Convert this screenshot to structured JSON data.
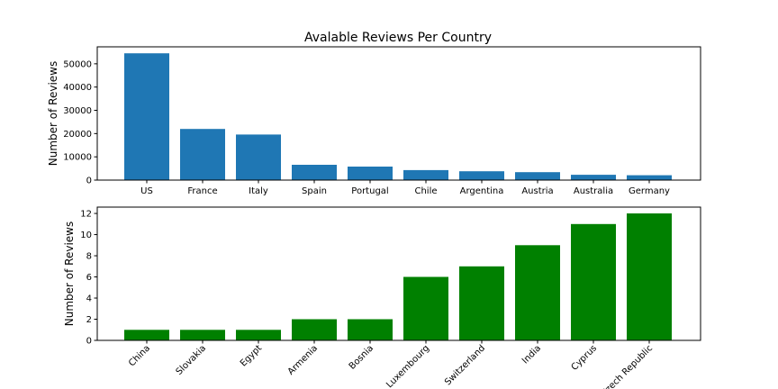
{
  "chart_data": [
    {
      "type": "bar",
      "title": "Avalable Reviews Per Country",
      "xlabel": "",
      "ylabel": "Number of Reviews",
      "categories": [
        "US",
        "France",
        "Italy",
        "Spain",
        "Portugal",
        "Chile",
        "Argentina",
        "Austria",
        "Australia",
        "Germany"
      ],
      "values": [
        54500,
        22000,
        19600,
        6600,
        5800,
        4300,
        3800,
        3400,
        2300,
        2100
      ],
      "ylim": [
        0,
        57300
      ],
      "yticks": [
        0,
        10000,
        20000,
        30000,
        40000,
        50000
      ],
      "bar_color": "#1f77b4",
      "grid": false,
      "rotate_xticks": 0
    },
    {
      "type": "bar",
      "title": "",
      "xlabel": "",
      "ylabel": "Number of Reviews",
      "categories": [
        "China",
        "Slovakia",
        "Egypt",
        "Armenia",
        "Bosnia",
        "Luxembourg",
        "Switzerland",
        "India",
        "Cyprus",
        "Czech Republic"
      ],
      "values": [
        1,
        1,
        1,
        2,
        2,
        6,
        7,
        9,
        11,
        12
      ],
      "ylim": [
        0,
        12.6
      ],
      "yticks": [
        0,
        2,
        4,
        6,
        8,
        10,
        12
      ],
      "bar_color": "#008000",
      "grid": false,
      "rotate_xticks": 45
    }
  ]
}
